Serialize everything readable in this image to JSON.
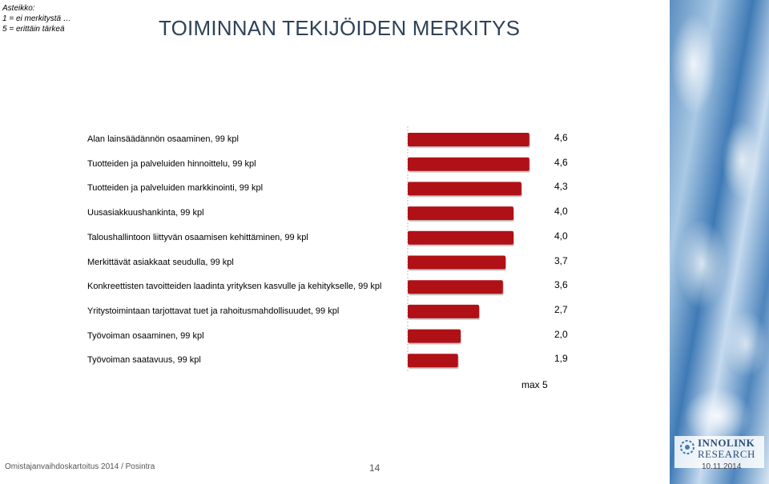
{
  "scale_note": [
    "Asteikko:",
    "1 = ei merkitystä …",
    "5 = erittäin tärkeä"
  ],
  "title": "TOIMINNAN TEKIJÖIDEN MERKITYS",
  "footer": {
    "left": "Omistajanvaihdoskartoitus 2014 / Posintra",
    "page": "14",
    "date": "10.11.2014"
  },
  "logo": {
    "line1": "INNOLINK",
    "line2": "RESEARCH"
  },
  "max_label": "max  5",
  "chart_data": {
    "type": "bar",
    "orientation": "horizontal",
    "title": "TOIMINNAN TEKIJÖIDEN MERKITYS",
    "categories": [
      "Alan lainsäädännön osaaminen, 99 kpl",
      "Tuotteiden ja palveluiden hinnoittelu, 99 kpl",
      "Tuotteiden ja palveluiden markkinointi, 99 kpl",
      "Uusasiakkuushankinta, 99 kpl",
      "Taloushallintoon liittyvän osaamisen kehittäminen, 99 kpl",
      "Merkittävät asiakkaat seudulla, 99 kpl",
      "Konkreettisten tavoitteiden laadinta yrityksen kasvulle ja kehitykselle, 99 kpl",
      "Yritystoimintaan tarjottavat tuet ja rahoitusmahdollisuudet, 99 kpl",
      "Työvoiman osaaminen, 99 kpl",
      "Työvoiman saatavuus, 99 kpl"
    ],
    "values": [
      4.6,
      4.6,
      4.3,
      4.0,
      4.0,
      3.7,
      3.6,
      2.7,
      2.0,
      1.9
    ],
    "value_labels": [
      "4,6",
      "4,6",
      "4,3",
      "4,0",
      "4,0",
      "3,7",
      "3,6",
      "2,7",
      "2,0",
      "1,9"
    ],
    "xlim": [
      0,
      5
    ],
    "bar_color": "#b01116",
    "grid": false
  }
}
